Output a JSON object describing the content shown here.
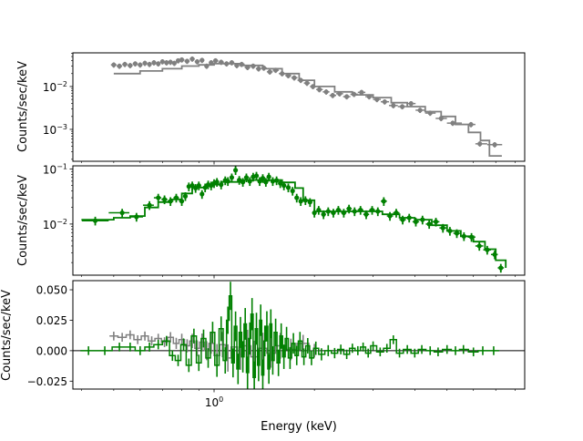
{
  "chart_data": [
    {
      "type": "scatter",
      "panel": "top",
      "ylabel": "Counts/sec/keV",
      "xscale": "log",
      "yscale": "log",
      "xlim": [
        0.377,
        8.55
      ],
      "ylim": [
        0.00018,
        0.061
      ],
      "ytick_labels": [
        {
          "value": 0.01,
          "base": "10",
          "exp": "−2"
        },
        {
          "value": 0.001,
          "base": "10",
          "exp": "−3"
        }
      ],
      "grid": false,
      "series": [
        {
          "color": "#808080",
          "kind": "data",
          "yerr_frac": 0.14,
          "x": [
            0.5,
            0.52,
            0.54,
            0.56,
            0.58,
            0.6,
            0.62,
            0.64,
            0.66,
            0.68,
            0.7,
            0.72,
            0.74,
            0.76,
            0.78,
            0.8,
            0.83,
            0.86,
            0.89,
            0.92,
            0.95,
            0.98,
            1.01,
            1.05,
            1.09,
            1.13,
            1.17,
            1.21,
            1.26,
            1.31,
            1.36,
            1.41,
            1.47,
            1.53,
            1.6,
            1.67,
            1.74,
            1.82,
            1.9,
            1.98,
            2.07,
            2.17,
            2.27,
            2.38,
            2.5,
            2.63,
            2.77,
            2.92,
            3.08,
            3.25,
            3.45,
            3.67,
            3.9,
            4.15,
            4.45,
            4.8,
            5.2,
            5.9,
            6.27,
            6.95
          ],
          "y": [
            0.032,
            0.03,
            0.033,
            0.031,
            0.034,
            0.032,
            0.035,
            0.033,
            0.036,
            0.034,
            0.038,
            0.036,
            0.037,
            0.035,
            0.04,
            0.042,
            0.039,
            0.044,
            0.038,
            0.041,
            0.03,
            0.036,
            0.04,
            0.037,
            0.034,
            0.036,
            0.031,
            0.033,
            0.028,
            0.03,
            0.026,
            0.027,
            0.022,
            0.024,
            0.02,
            0.018,
            0.016,
            0.014,
            0.012,
            0.01,
            0.0085,
            0.0075,
            0.0062,
            0.0068,
            0.0058,
            0.0066,
            0.0073,
            0.0058,
            0.005,
            0.0044,
            0.0036,
            0.0034,
            0.004,
            0.0028,
            0.0024,
            0.0018,
            0.0014,
            0.0013,
            0.00046,
            0.00044
          ]
        },
        {
          "color": "#808080",
          "kind": "model-step",
          "x": [
            0.5,
            0.6,
            0.7,
            0.8,
            0.9,
            1.0,
            1.2,
            1.4,
            1.6,
            1.8,
            2.0,
            2.3,
            2.6,
            3.0,
            3.4,
            3.8,
            4.3,
            4.8,
            5.3,
            5.8,
            6.3,
            6.7,
            7.3
          ],
          "y": [
            0.02,
            0.023,
            0.026,
            0.03,
            0.032,
            0.034,
            0.031,
            0.026,
            0.02,
            0.014,
            0.01,
            0.0075,
            0.0064,
            0.0055,
            0.0042,
            0.0034,
            0.0026,
            0.002,
            0.0013,
            0.00085,
            0.00055,
            0.00024,
            0.00024
          ]
        }
      ]
    },
    {
      "type": "scatter",
      "panel": "middle",
      "ylabel": "Counts/sec/keV",
      "xscale": "log",
      "yscale": "log",
      "xlim": [
        0.377,
        8.55
      ],
      "ylim": [
        0.00118,
        0.114
      ],
      "ytick_labels": [
        {
          "value": 0.1,
          "base": "10",
          "exp": "−1"
        },
        {
          "value": 0.01,
          "base": "10",
          "exp": "−2"
        }
      ],
      "grid": false,
      "series": [
        {
          "color": "#008000",
          "kind": "data",
          "yerr_frac": 0.18,
          "x": [
            0.44,
            0.53,
            0.585,
            0.64,
            0.68,
            0.71,
            0.74,
            0.77,
            0.8,
            0.82,
            0.84,
            0.86,
            0.88,
            0.9,
            0.92,
            0.94,
            0.96,
            0.98,
            1.0,
            1.02,
            1.05,
            1.08,
            1.1,
            1.13,
            1.16,
            1.19,
            1.22,
            1.25,
            1.28,
            1.31,
            1.34,
            1.37,
            1.4,
            1.43,
            1.46,
            1.5,
            1.54,
            1.58,
            1.62,
            1.67,
            1.72,
            1.77,
            1.82,
            1.88,
            1.94,
            2.0,
            2.06,
            2.13,
            2.2,
            2.28,
            2.36,
            2.45,
            2.54,
            2.64,
            2.75,
            2.86,
            2.98,
            3.1,
            3.23,
            3.37,
            3.52,
            3.68,
            3.85,
            4.03,
            4.22,
            4.42,
            4.63,
            4.86,
            5.1,
            5.35,
            5.62,
            5.92,
            6.25,
            6.6,
            6.95,
            7.25
          ],
          "y": [
            0.0115,
            0.016,
            0.0135,
            0.022,
            0.03,
            0.028,
            0.026,
            0.03,
            0.026,
            0.032,
            0.048,
            0.05,
            0.045,
            0.05,
            0.035,
            0.046,
            0.052,
            0.05,
            0.055,
            0.058,
            0.052,
            0.062,
            0.06,
            0.07,
            0.095,
            0.063,
            0.058,
            0.07,
            0.06,
            0.072,
            0.075,
            0.06,
            0.068,
            0.058,
            0.072,
            0.06,
            0.062,
            0.055,
            0.05,
            0.046,
            0.04,
            0.03,
            0.026,
            0.027,
            0.025,
            0.016,
            0.018,
            0.015,
            0.017,
            0.016,
            0.018,
            0.016,
            0.019,
            0.017,
            0.018,
            0.015,
            0.018,
            0.017,
            0.026,
            0.014,
            0.016,
            0.012,
            0.013,
            0.011,
            0.012,
            0.01,
            0.011,
            0.0085,
            0.0075,
            0.0068,
            0.006,
            0.0058,
            0.004,
            0.0034,
            0.0028,
            0.0016
          ]
        },
        {
          "color": "#008000",
          "kind": "model-step",
          "x": [
            0.4,
            0.5,
            0.56,
            0.62,
            0.68,
            0.74,
            0.8,
            0.86,
            0.95,
            1.05,
            1.2,
            1.4,
            1.6,
            1.75,
            1.85,
            2.0,
            2.4,
            2.8,
            3.2,
            3.6,
            4.0,
            4.5,
            5.0,
            5.5,
            6.0,
            6.5,
            7.0,
            7.5
          ],
          "y": [
            0.012,
            0.013,
            0.014,
            0.02,
            0.025,
            0.028,
            0.036,
            0.046,
            0.052,
            0.058,
            0.063,
            0.063,
            0.057,
            0.045,
            0.027,
            0.017,
            0.017,
            0.017,
            0.015,
            0.013,
            0.012,
            0.0095,
            0.0075,
            0.006,
            0.0048,
            0.0035,
            0.0022,
            0.0016
          ]
        }
      ]
    },
    {
      "type": "scatter",
      "panel": "bottom",
      "ylabel": "Counts/sec/keV",
      "xlabel": "Energy (keV)",
      "xscale": "log",
      "yscale": "linear",
      "xlim": [
        0.377,
        8.55
      ],
      "ylim": [
        -0.0315,
        0.0575
      ],
      "xtick_labels": [
        {
          "value": 1,
          "base": "10",
          "exp": "0"
        }
      ],
      "ytick_labels": [
        {
          "value": 0.05,
          "label": "0.050"
        },
        {
          "value": 0.025,
          "label": "0.025"
        },
        {
          "value": 0.0,
          "label": "0.000"
        },
        {
          "value": -0.025,
          "label": "−0.025"
        }
      ],
      "zero_line_color": "#000000",
      "grid": false,
      "series": [
        {
          "color": "#808080",
          "kind": "residual",
          "yerr": 0.006,
          "x": [
            0.5,
            0.53,
            0.56,
            0.59,
            0.62,
            0.65,
            0.68,
            0.71,
            0.74,
            0.77,
            0.8,
            0.83,
            0.86,
            0.89,
            0.92,
            0.95,
            0.98,
            1.02,
            1.06,
            1.1,
            1.15,
            1.2,
            1.26,
            1.32,
            1.4,
            1.48,
            1.58,
            1.7,
            1.85,
            2.0
          ],
          "y": [
            0.012,
            0.011,
            0.013,
            0.009,
            0.012,
            0.008,
            0.01,
            0.007,
            0.011,
            0.006,
            0.009,
            0.004,
            0.008,
            0.002,
            0.007,
            0.0,
            0.006,
            -0.004,
            0.005,
            -0.006,
            0.003,
            -0.003,
            0.004,
            -0.005,
            0.002,
            -0.002,
            0.004,
            0.001,
            0.006,
            0.0
          ]
        },
        {
          "color": "#008000",
          "kind": "residual",
          "yerr": 0.006,
          "x": [
            0.42,
            0.47,
            0.52,
            0.56,
            0.6,
            0.64,
            0.68,
            0.72,
            0.75,
            0.78,
            0.81,
            0.84,
            0.87,
            0.9,
            0.93,
            0.96,
            0.99,
            1.02,
            1.05,
            1.08,
            1.1,
            1.12,
            1.14,
            1.16,
            1.18,
            1.2,
            1.22,
            1.24,
            1.26,
            1.28,
            1.3,
            1.32,
            1.34,
            1.36,
            1.38,
            1.4,
            1.42,
            1.44,
            1.46,
            1.48,
            1.5,
            1.53,
            1.56,
            1.59,
            1.62,
            1.65,
            1.69,
            1.73,
            1.77,
            1.81,
            1.86,
            1.91,
            1.96,
            2.02,
            2.1,
            2.2,
            2.3,
            2.4,
            2.5,
            2.6,
            2.7,
            2.8,
            2.9,
            3.0,
            3.15,
            3.3,
            3.45,
            3.6,
            3.8,
            4.0,
            4.2,
            4.45,
            4.7,
            5.0,
            5.3,
            5.6,
            6.0,
            6.4,
            6.9
          ],
          "y": [
            0.0,
            0.0,
            0.003,
            0.003,
            0.0,
            0.003,
            0.005,
            0.008,
            -0.004,
            -0.008,
            0.005,
            -0.012,
            0.012,
            -0.01,
            0.01,
            -0.006,
            0.015,
            -0.012,
            0.018,
            -0.008,
            0.025,
            0.045,
            -0.01,
            0.02,
            -0.015,
            0.015,
            -0.005,
            0.022,
            -0.018,
            0.01,
            0.03,
            -0.022,
            0.018,
            -0.012,
            0.025,
            -0.02,
            0.008,
            0.02,
            -0.015,
            0.022,
            -0.008,
            0.015,
            -0.01,
            0.012,
            -0.005,
            0.01,
            -0.006,
            0.006,
            -0.004,
            0.008,
            -0.005,
            0.004,
            -0.006,
            0.002,
            -0.003,
            0.0,
            -0.002,
            0.001,
            -0.003,
            0.002,
            0.0,
            0.003,
            -0.002,
            0.004,
            -0.001,
            0.002,
            0.009,
            -0.002,
            0.001,
            -0.002,
            0.001,
            0.0,
            -0.001,
            0.001,
            0.0,
            0.001,
            -0.001,
            0.0,
            0.0
          ]
        }
      ]
    }
  ]
}
